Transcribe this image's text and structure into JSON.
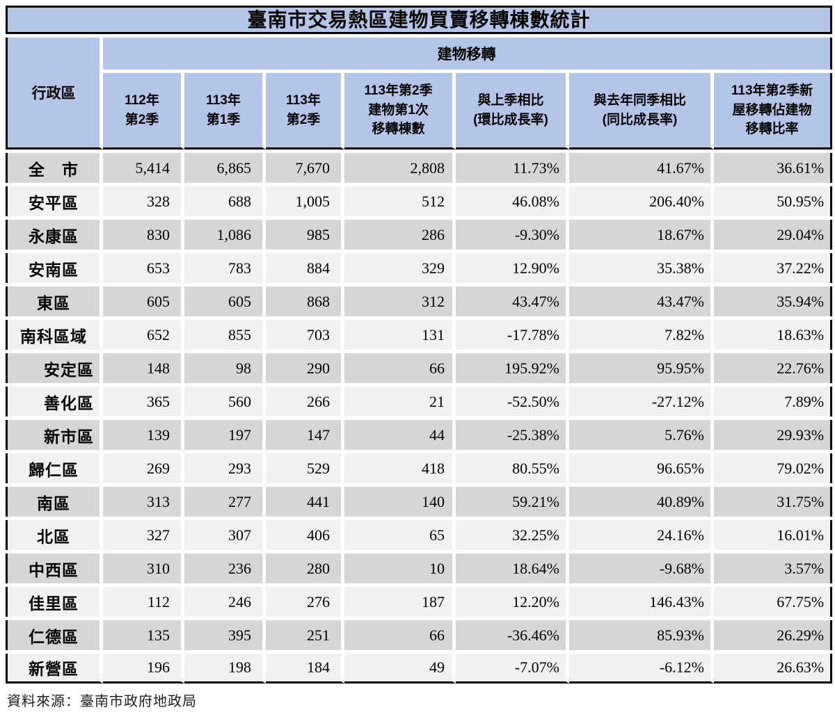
{
  "title": "臺南市交易熱區建物買賣移轉棟數統計",
  "source_note": "資料來源：臺南市政府地政局",
  "colors": {
    "header_blue": "#b4c6e7",
    "row_gray": "#d6d6d6",
    "row_light": "#f1f1f1",
    "gap_white": "#ffffff",
    "border_black": "#000000"
  },
  "chart_data": {
    "type": "table",
    "title": "臺南市交易熱區建物買賣移轉棟數統計",
    "corner_header": "行政區",
    "group_header": "建物移轉",
    "columns": [
      "112年\n第2季",
      "113年\n第1季",
      "113年\n第2季",
      "113年第2季\n建物第1次\n移轉棟數",
      "與上季相比\n(環比成長率)",
      "與去年同季相比\n(同比成長率)",
      "113年第2季新\n屋移轉佔建物\n移轉比率"
    ],
    "rows": [
      {
        "district": "全　市",
        "indent": false,
        "values": [
          "5,414",
          "6,865",
          "7,670",
          "2,808",
          "11.73%",
          "41.67%",
          "36.61%"
        ]
      },
      {
        "district": "安平區",
        "indent": false,
        "values": [
          "328",
          "688",
          "1,005",
          "512",
          "46.08%",
          "206.40%",
          "50.95%"
        ]
      },
      {
        "district": "永康區",
        "indent": false,
        "values": [
          "830",
          "1,086",
          "985",
          "286",
          "-9.30%",
          "18.67%",
          "29.04%"
        ]
      },
      {
        "district": "安南區",
        "indent": false,
        "values": [
          "653",
          "783",
          "884",
          "329",
          "12.90%",
          "35.38%",
          "37.22%"
        ]
      },
      {
        "district": "東區",
        "indent": false,
        "values": [
          "605",
          "605",
          "868",
          "312",
          "43.47%",
          "43.47%",
          "35.94%"
        ]
      },
      {
        "district": "南科區域",
        "indent": false,
        "values": [
          "652",
          "855",
          "703",
          "131",
          "-17.78%",
          "7.82%",
          "18.63%"
        ]
      },
      {
        "district": "安定區",
        "indent": true,
        "values": [
          "148",
          "98",
          "290",
          "66",
          "195.92%",
          "95.95%",
          "22.76%"
        ]
      },
      {
        "district": "善化區",
        "indent": true,
        "values": [
          "365",
          "560",
          "266",
          "21",
          "-52.50%",
          "-27.12%",
          "7.89%"
        ]
      },
      {
        "district": "新市區",
        "indent": true,
        "values": [
          "139",
          "197",
          "147",
          "44",
          "-25.38%",
          "5.76%",
          "29.93%"
        ]
      },
      {
        "district": "歸仁區",
        "indent": false,
        "values": [
          "269",
          "293",
          "529",
          "418",
          "80.55%",
          "96.65%",
          "79.02%"
        ]
      },
      {
        "district": "南區",
        "indent": false,
        "values": [
          "313",
          "277",
          "441",
          "140",
          "59.21%",
          "40.89%",
          "31.75%"
        ]
      },
      {
        "district": "北區",
        "indent": false,
        "values": [
          "327",
          "307",
          "406",
          "65",
          "32.25%",
          "24.16%",
          "16.01%"
        ]
      },
      {
        "district": "中西區",
        "indent": false,
        "values": [
          "310",
          "236",
          "280",
          "10",
          "18.64%",
          "-9.68%",
          "3.57%"
        ]
      },
      {
        "district": "佳里區",
        "indent": false,
        "values": [
          "112",
          "246",
          "276",
          "187",
          "12.20%",
          "146.43%",
          "67.75%"
        ]
      },
      {
        "district": "仁德區",
        "indent": false,
        "values": [
          "135",
          "395",
          "251",
          "66",
          "-36.46%",
          "85.93%",
          "26.29%"
        ]
      },
      {
        "district": "新營區",
        "indent": false,
        "values": [
          "196",
          "198",
          "184",
          "49",
          "-7.07%",
          "-6.12%",
          "26.63%"
        ]
      }
    ],
    "source": "資料來源：臺南市政府地政局"
  }
}
